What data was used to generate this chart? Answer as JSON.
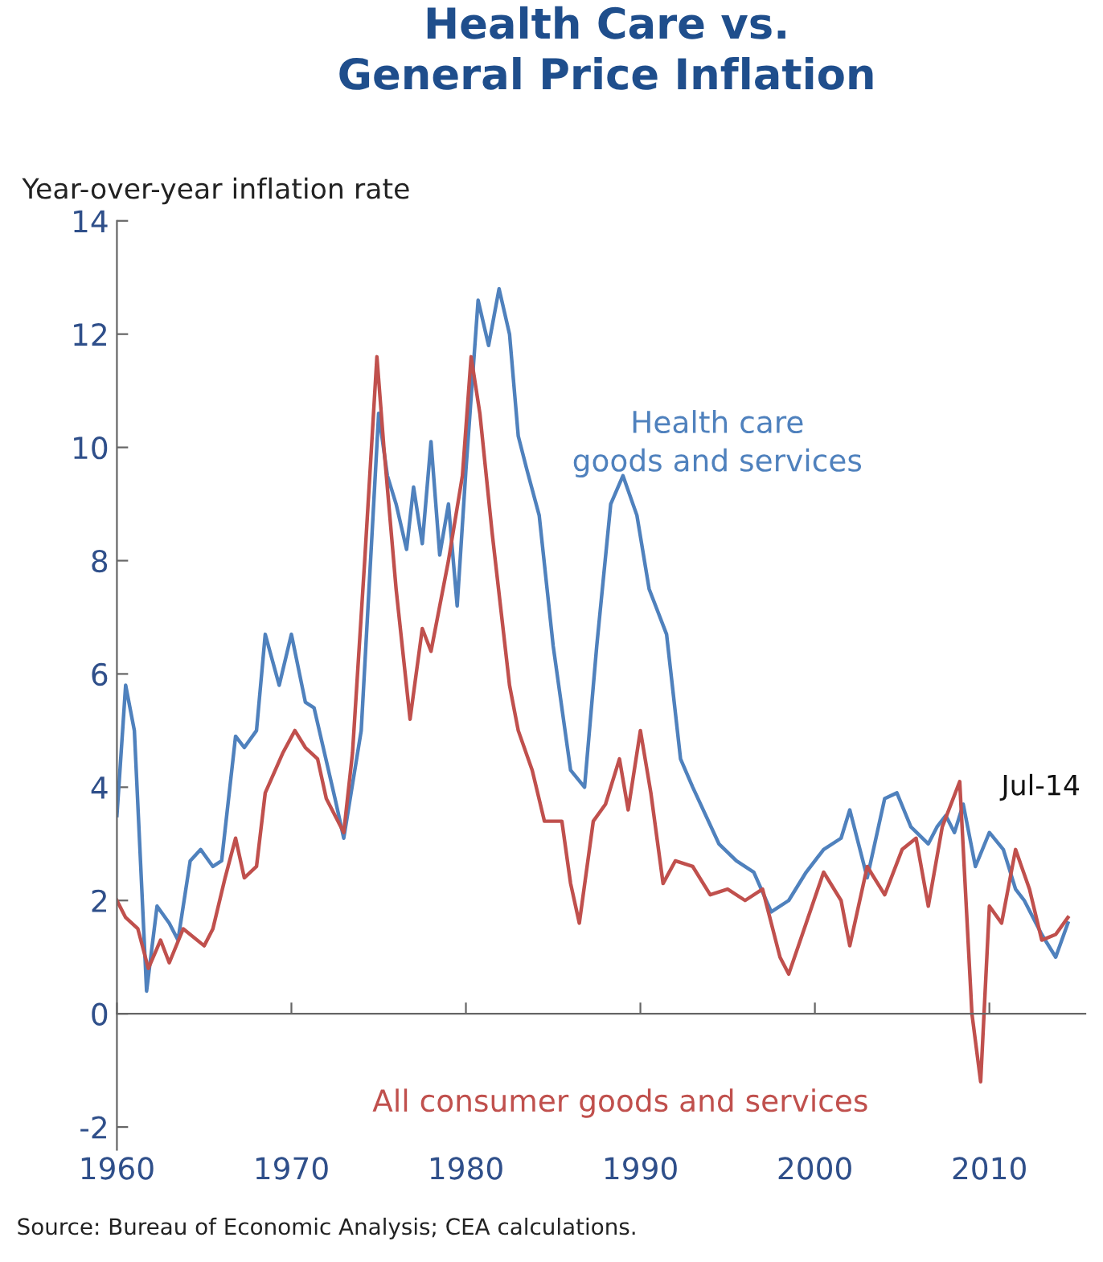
{
  "chart_data": {
    "type": "line",
    "title": "Health Care vs.\nGeneral Price Inflation",
    "ylabel": "Year-over-year inflation rate",
    "xlim": [
      1960,
      2015.5
    ],
    "xticks": [
      1960,
      1970,
      1980,
      1990,
      2000,
      2010
    ],
    "ylim": [
      -2.4,
      14
    ],
    "yticks": [
      -2,
      0,
      2,
      4,
      6,
      8,
      10,
      12,
      14
    ],
    "legend": false,
    "series": [
      {
        "name": "Health care\ngoods and services",
        "color": "#4f81bd",
        "x": [
          1960.0,
          1960.5,
          1961.0,
          1961.7,
          1962.3,
          1963.0,
          1963.5,
          1964.2,
          1964.8,
          1965.5,
          1966.0,
          1966.8,
          1967.3,
          1968.0,
          1968.5,
          1969.3,
          1970.0,
          1970.8,
          1971.3,
          1972.5,
          1973.0,
          1974.0,
          1975.0,
          1975.5,
          1976.0,
          1976.6,
          1977.0,
          1977.5,
          1978.0,
          1978.5,
          1979.0,
          1979.5,
          1980.0,
          1980.7,
          1981.3,
          1981.9,
          1982.5,
          1983.0,
          1983.5,
          1984.2,
          1985.0,
          1986.0,
          1986.8,
          1987.5,
          1988.3,
          1989.0,
          1989.8,
          1990.5,
          1991.5,
          1992.3,
          1993.0,
          1994.5,
          1995.5,
          1996.5,
          1997.5,
          1998.5,
          1999.5,
          2000.5,
          2001.5,
          2002.0,
          2002.5,
          2003.0,
          2004.0,
          2004.7,
          2005.5,
          2006.5,
          2007.0,
          2007.5,
          2008.0,
          2008.5,
          2009.2,
          2010.0,
          2010.8,
          2011.5,
          2012.0,
          2013.0,
          2013.8,
          2014.5
        ],
        "values": [
          3.5,
          5.8,
          5.0,
          0.4,
          1.9,
          1.6,
          1.3,
          2.7,
          2.9,
          2.6,
          2.7,
          4.9,
          4.7,
          5.0,
          6.7,
          5.8,
          6.7,
          5.5,
          5.4,
          3.8,
          3.1,
          5.0,
          10.6,
          9.5,
          9.0,
          8.2,
          9.3,
          8.3,
          10.1,
          8.1,
          9.0,
          7.2,
          9.6,
          12.6,
          11.8,
          12.8,
          12.0,
          10.2,
          9.6,
          8.8,
          6.5,
          4.3,
          4.0,
          6.5,
          9.0,
          9.5,
          8.8,
          7.5,
          6.7,
          4.5,
          4.0,
          3.0,
          2.7,
          2.5,
          1.8,
          2.0,
          2.5,
          2.9,
          3.1,
          3.6,
          3.0,
          2.4,
          3.8,
          3.9,
          3.3,
          3.0,
          3.3,
          3.5,
          3.2,
          3.7,
          2.6,
          3.2,
          2.9,
          2.2,
          2.0,
          1.4,
          1.0,
          1.6
        ]
      },
      {
        "name": "All consumer goods and services",
        "color": "#c0504d",
        "x": [
          1960.0,
          1960.5,
          1961.2,
          1961.8,
          1962.5,
          1963.0,
          1963.8,
          1965.0,
          1965.5,
          1966.2,
          1966.8,
          1967.3,
          1968.0,
          1968.5,
          1969.5,
          1970.2,
          1970.8,
          1971.5,
          1972.0,
          1973.0,
          1973.5,
          1974.2,
          1974.9,
          1975.3,
          1976.0,
          1976.8,
          1977.5,
          1978.0,
          1979.0,
          1979.8,
          1980.3,
          1980.8,
          1981.5,
          1982.5,
          1983.0,
          1983.8,
          1984.5,
          1985.5,
          1986.0,
          1986.5,
          1987.3,
          1988.0,
          1988.8,
          1989.3,
          1990.0,
          1990.6,
          1991.3,
          1992.0,
          1993.0,
          1994.0,
          1995.0,
          1996.0,
          1997.0,
          1998.0,
          1998.5,
          1999.5,
          2000.5,
          2001.5,
          2002.0,
          2003.0,
          2004.0,
          2005.0,
          2005.8,
          2006.5,
          2007.3,
          2008.3,
          2009.0,
          2009.5,
          2010.0,
          2010.7,
          2011.5,
          2012.3,
          2013.0,
          2013.8,
          2014.5
        ],
        "values": [
          2.0,
          1.7,
          1.5,
          0.8,
          1.3,
          0.9,
          1.5,
          1.2,
          1.5,
          2.4,
          3.1,
          2.4,
          2.6,
          3.9,
          4.6,
          5.0,
          4.7,
          4.5,
          3.8,
          3.2,
          4.6,
          8.0,
          11.6,
          10.0,
          7.5,
          5.2,
          6.8,
          6.4,
          8.0,
          9.5,
          11.6,
          10.6,
          8.5,
          5.8,
          5.0,
          4.3,
          3.4,
          3.4,
          2.3,
          1.6,
          3.4,
          3.7,
          4.5,
          3.6,
          5.0,
          3.9,
          2.3,
          2.7,
          2.6,
          2.1,
          2.2,
          2.0,
          2.2,
          1.0,
          0.7,
          1.6,
          2.5,
          2.0,
          1.2,
          2.6,
          2.1,
          2.9,
          3.1,
          1.9,
          3.3,
          4.1,
          0.0,
          -1.2,
          1.9,
          1.6,
          2.9,
          2.2,
          1.3,
          1.4,
          1.7
        ]
      }
    ],
    "annotations": [
      "Jul-14",
      "Source: Bureau of Economic Analysis; CEA calculations."
    ]
  }
}
